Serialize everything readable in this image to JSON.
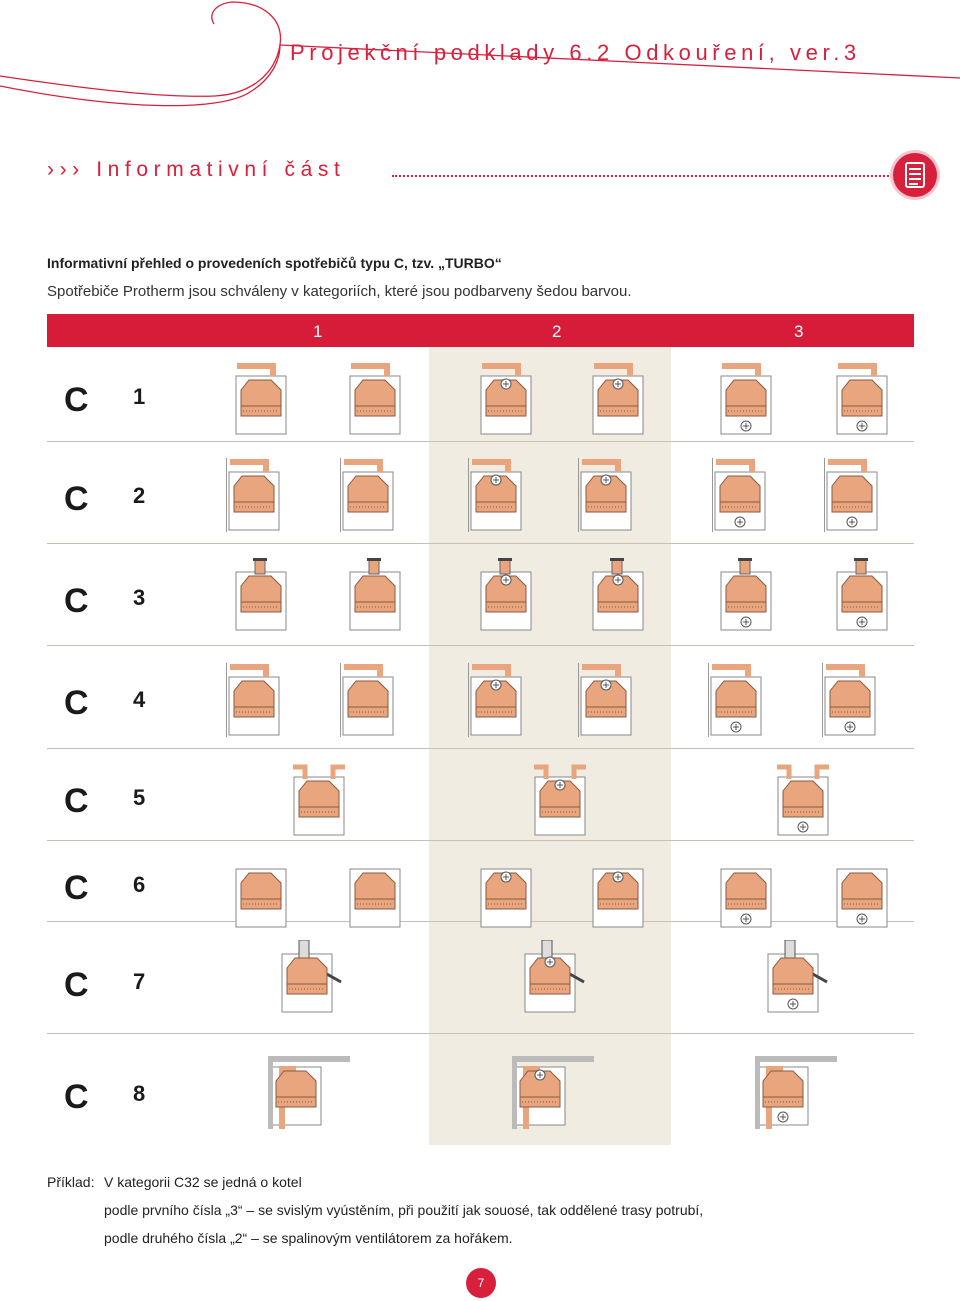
{
  "header": {
    "title": "Projekční podklady 6.2 Odkouření, ver.3",
    "section": "››› Informativní část",
    "menu_icon": "document-list-icon"
  },
  "intro": {
    "heading": "Informativní přehled o provedeních spotřebičů typu C, tzv. „TURBO“",
    "text": "Spotřebiče Protherm jsou schváleny v kategoriích, které jsou podbarveny šedou barvou."
  },
  "table": {
    "columns": [
      "1",
      "2",
      "3"
    ],
    "rows": [
      {
        "letter": "C",
        "number": "1"
      },
      {
        "letter": "C",
        "number": "2"
      },
      {
        "letter": "C",
        "number": "3"
      },
      {
        "letter": "C",
        "number": "4"
      },
      {
        "letter": "C",
        "number": "5"
      },
      {
        "letter": "C",
        "number": "6"
      },
      {
        "letter": "C",
        "number": "7"
      },
      {
        "letter": "C",
        "number": "8"
      }
    ],
    "colors": {
      "header": "#d71c3a",
      "approved_band": "#f1ece1",
      "boiler": "#e8a57e"
    }
  },
  "example": {
    "label": "Příklad:",
    "line1": "V kategorii C32 se jedná o kotel",
    "line2": "podle prvního čísla „3“ – se svislým vyústěním, při použití jak souosé, tak oddělené trasy potrubí,",
    "line3": "podle druhého čísla „2“ – se spalinovým ventilátorem za hořákem."
  },
  "page_number": "7"
}
